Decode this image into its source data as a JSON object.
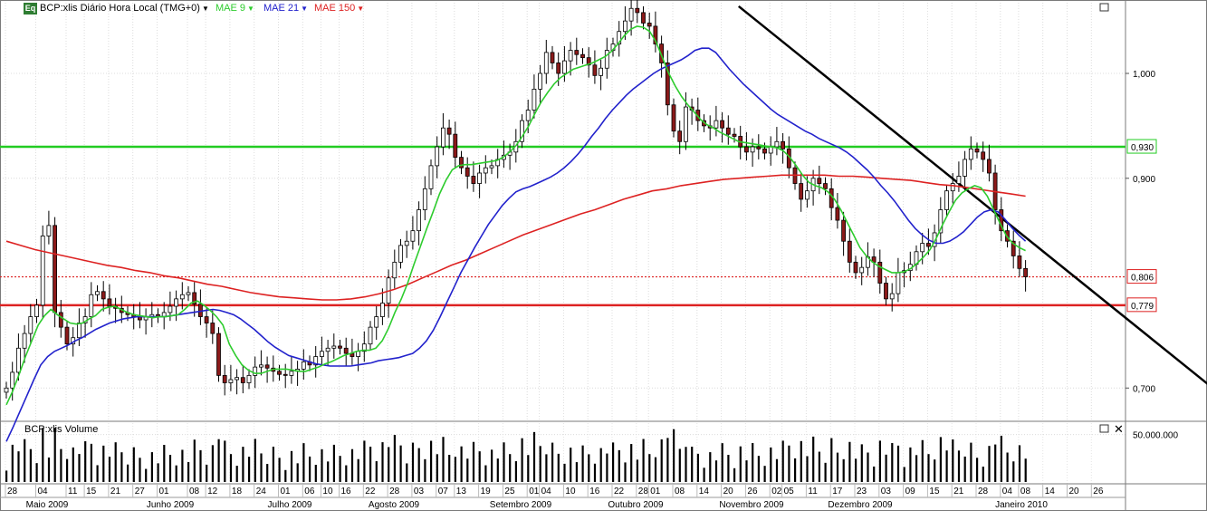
{
  "header": {
    "badge": "Eq",
    "symbol_title": "BCP:xlis Diário Hora Local (TMG+0)",
    "indicators": [
      {
        "label": "MAE 9",
        "color": "#2ecc2e"
      },
      {
        "label": "MAE 21",
        "color": "#2222cc"
      },
      {
        "label": "MAE 150",
        "color": "#dd2222"
      }
    ]
  },
  "volume_panel": {
    "title": "BCP:xlis Volume"
  },
  "colors": {
    "candle_up": "#ffffff",
    "candle_down": "#8b1a1a",
    "mae9": "#2ecc2e",
    "mae21": "#2222cc",
    "mae150": "#dd2222",
    "support_line": "#dd2222",
    "resistance_line": "#22cc22",
    "trend_line": "#000000"
  },
  "chart_data": {
    "type": "candlestick",
    "title": "BCP:xlis Diário Hora Local (TMG+0)",
    "y_axis": {
      "ticks": [
        {
          "value": 1.0,
          "label": "1,000"
        },
        {
          "value": 0.9,
          "label": "0,900"
        },
        {
          "value": 0.7,
          "label": "0,700"
        }
      ],
      "ylim": [
        0.67,
        1.07
      ]
    },
    "price_markers": [
      {
        "value": 0.93,
        "label": "0,930",
        "color": "#22cc22"
      },
      {
        "value": 0.806,
        "label": "0,806",
        "color": "#dd2222"
      },
      {
        "value": 0.779,
        "label": "0,779",
        "color": "#dd2222"
      }
    ],
    "horizontal_lines": [
      {
        "name": "resistance",
        "value": 0.93,
        "style": "solid"
      },
      {
        "name": "support",
        "value": 0.779,
        "style": "solid"
      },
      {
        "name": "last",
        "value": 0.806,
        "style": "dotted"
      }
    ],
    "trend_line": {
      "from": {
        "date": "2009-10-14",
        "value": 1.064
      },
      "to": {
        "date": "2010-02-01",
        "value": 0.698
      }
    },
    "day_ticks": [
      "28",
      "04",
      "11",
      "15",
      "21",
      "27",
      "01",
      "08",
      "12",
      "18",
      "24",
      "01",
      "06",
      "10",
      "16",
      "22",
      "28",
      "03",
      "07",
      "13",
      "19",
      "25",
      "01",
      "04",
      "10",
      "16",
      "22",
      "28",
      "01",
      "08",
      "14",
      "20",
      "26",
      "02",
      "05",
      "11",
      "17",
      "23",
      "03",
      "09",
      "15",
      "21",
      "28",
      "04",
      "08",
      "14",
      "20",
      "26"
    ],
    "month_labels": [
      "Maio 2009",
      "Junho 2009",
      "Julho 2009",
      "Agosto 2009",
      "Setembro 2009",
      "Outubro 2009",
      "Novembro 2009",
      "Dezembro 2009",
      "Janeiro 2010"
    ],
    "volume_axis": {
      "ticks": [
        {
          "value": 50000000,
          "label": "50.000.000"
        }
      ],
      "ylim": [
        0,
        62000000
      ]
    },
    "close_series": {
      "name": "BCP:xlis",
      "values": [
        0.7,
        0.715,
        0.738,
        0.752,
        0.768,
        0.779,
        0.845,
        0.855,
        0.772,
        0.758,
        0.742,
        0.748,
        0.762,
        0.768,
        0.789,
        0.792,
        0.785,
        0.778,
        0.776,
        0.772,
        0.77,
        0.768,
        0.765,
        0.768,
        0.77,
        0.768,
        0.772,
        0.778,
        0.785,
        0.789,
        0.791,
        0.78,
        0.768,
        0.762,
        0.752,
        0.712,
        0.705,
        0.708,
        0.71,
        0.705,
        0.712,
        0.72,
        0.722,
        0.719,
        0.716,
        0.713,
        0.712,
        0.716,
        0.718,
        0.725,
        0.722,
        0.73,
        0.735,
        0.738,
        0.74,
        0.738,
        0.733,
        0.73,
        0.735,
        0.742,
        0.758,
        0.768,
        0.781,
        0.805,
        0.82,
        0.836,
        0.84,
        0.85,
        0.87,
        0.89,
        0.912,
        0.93,
        0.948,
        0.942,
        0.92,
        0.91,
        0.902,
        0.895,
        0.905,
        0.91,
        0.912,
        0.918,
        0.922,
        0.925,
        0.935,
        0.955,
        0.965,
        0.985,
        1.0,
        1.02,
        1.01,
        1.0,
        1.012,
        1.022,
        1.018,
        1.015,
        1.008,
        0.998,
        1.005,
        1.022,
        1.028,
        1.04,
        1.05,
        1.062,
        1.058,
        1.048,
        1.045,
        1.028,
        1.01,
        0.97,
        0.945,
        0.935,
        0.968,
        0.965,
        0.955,
        0.95,
        0.948,
        0.955,
        0.948,
        0.942,
        0.94,
        0.93,
        0.925,
        0.93,
        0.928,
        0.924,
        0.93,
        0.935,
        0.928,
        0.91,
        0.895,
        0.88,
        0.888,
        0.9,
        0.895,
        0.89,
        0.872,
        0.86,
        0.84,
        0.82,
        0.81,
        0.815,
        0.825,
        0.82,
        0.8,
        0.785,
        0.79,
        0.81,
        0.812,
        0.818,
        0.83,
        0.838,
        0.835,
        0.848,
        0.87,
        0.888,
        0.895,
        0.902,
        0.918,
        0.928,
        0.925,
        0.918,
        0.905,
        0.87,
        0.85,
        0.84,
        0.826,
        0.814,
        0.806
      ]
    },
    "mae9_series": {
      "name": "MAE 9",
      "values": [
        0.684,
        0.697,
        0.713,
        0.73,
        0.745,
        0.76,
        0.769,
        0.775,
        0.77,
        0.766,
        0.762,
        0.761,
        0.762,
        0.766,
        0.769,
        0.775,
        0.777,
        0.778,
        0.775,
        0.772,
        0.77,
        0.769,
        0.768,
        0.767,
        0.768,
        0.768,
        0.769,
        0.77,
        0.775,
        0.781,
        0.783,
        0.779,
        0.774,
        0.768,
        0.76,
        0.742,
        0.731,
        0.722,
        0.717,
        0.714,
        0.714,
        0.716,
        0.718,
        0.718,
        0.718,
        0.717,
        0.716,
        0.716,
        0.718,
        0.72,
        0.723,
        0.725,
        0.728,
        0.731,
        0.733,
        0.735,
        0.736,
        0.736,
        0.738,
        0.745,
        0.757,
        0.772,
        0.785,
        0.8,
        0.818,
        0.835,
        0.852,
        0.868,
        0.885,
        0.898,
        0.908,
        0.912,
        0.913,
        0.913,
        0.914,
        0.915,
        0.916,
        0.917,
        0.92,
        0.925,
        0.931,
        0.94,
        0.95,
        0.962,
        0.973,
        0.982,
        0.99,
        0.996,
        1.0,
        1.004,
        1.006,
        1.008,
        1.01,
        1.013,
        1.016,
        1.021,
        1.028,
        1.036,
        1.042,
        1.045,
        1.044,
        1.04,
        1.03,
        1.015,
        1.0,
        0.988,
        0.978,
        0.97,
        0.963,
        0.956,
        0.951,
        0.948,
        0.944,
        0.941,
        0.938,
        0.935,
        0.934,
        0.933,
        0.932,
        0.931,
        0.93,
        0.929,
        0.926,
        0.92,
        0.912,
        0.903,
        0.896,
        0.893,
        0.891,
        0.887,
        0.88,
        0.87,
        0.858,
        0.846,
        0.834,
        0.826,
        0.82,
        0.816,
        0.813,
        0.81,
        0.81,
        0.811,
        0.814,
        0.819,
        0.825,
        0.832,
        0.843,
        0.856,
        0.868,
        0.879,
        0.886,
        0.89,
        0.893,
        0.891,
        0.883,
        0.87,
        0.857,
        0.845,
        0.838,
        0.834,
        0.831
      ]
    },
    "mae21_series": {
      "name": "MAE 21",
      "values": [
        0.649,
        0.663,
        0.678,
        0.693,
        0.708,
        0.722,
        0.73,
        0.735,
        0.738,
        0.741,
        0.745,
        0.748,
        0.752,
        0.756,
        0.759,
        0.762,
        0.764,
        0.766,
        0.767,
        0.768,
        0.768,
        0.768,
        0.768,
        0.768,
        0.769,
        0.77,
        0.771,
        0.772,
        0.773,
        0.774,
        0.775,
        0.774,
        0.772,
        0.77,
        0.766,
        0.761,
        0.756,
        0.75,
        0.744,
        0.739,
        0.735,
        0.731,
        0.729,
        0.727,
        0.725,
        0.723,
        0.722,
        0.721,
        0.721,
        0.721,
        0.721,
        0.722,
        0.723,
        0.724,
        0.726,
        0.727,
        0.728,
        0.729,
        0.731,
        0.733,
        0.738,
        0.745,
        0.755,
        0.768,
        0.782,
        0.796,
        0.81,
        0.822,
        0.834,
        0.845,
        0.856,
        0.865,
        0.874,
        0.881,
        0.887,
        0.89,
        0.892,
        0.895,
        0.898,
        0.901,
        0.905,
        0.91,
        0.916,
        0.923,
        0.931,
        0.94,
        0.948,
        0.957,
        0.965,
        0.972,
        0.979,
        0.985,
        0.99,
        0.995,
        1.0,
        1.004,
        1.007,
        1.01,
        1.013,
        1.017,
        1.022,
        1.024,
        1.024,
        1.02,
        1.012,
        1.004,
        0.997,
        0.99,
        0.984,
        0.978,
        0.972,
        0.966,
        0.961,
        0.957,
        0.953,
        0.949,
        0.945,
        0.942,
        0.938,
        0.935,
        0.932,
        0.929,
        0.925,
        0.92,
        0.914,
        0.908,
        0.901,
        0.893,
        0.886,
        0.878,
        0.869,
        0.86,
        0.852,
        0.846,
        0.841,
        0.838,
        0.838,
        0.84,
        0.844,
        0.849,
        0.856,
        0.863,
        0.868,
        0.87,
        0.868,
        0.861,
        0.853,
        0.846,
        0.84
      ]
    },
    "mae150_series": {
      "name": "MAE 150",
      "values": [
        0.84,
        0.836,
        0.832,
        0.829,
        0.826,
        0.823,
        0.82,
        0.817,
        0.815,
        0.812,
        0.81,
        0.807,
        0.805,
        0.802,
        0.799,
        0.797,
        0.794,
        0.791,
        0.789,
        0.787,
        0.786,
        0.785,
        0.784,
        0.784,
        0.785,
        0.787,
        0.79,
        0.794,
        0.799,
        0.805,
        0.811,
        0.817,
        0.822,
        0.828,
        0.834,
        0.84,
        0.846,
        0.851,
        0.856,
        0.861,
        0.866,
        0.87,
        0.875,
        0.88,
        0.884,
        0.888,
        0.89,
        0.893,
        0.895,
        0.897,
        0.899,
        0.9,
        0.901,
        0.902,
        0.903,
        0.903,
        0.903,
        0.903,
        0.902,
        0.902,
        0.901,
        0.9,
        0.899,
        0.898,
        0.896,
        0.894,
        0.893,
        0.891,
        0.889,
        0.887,
        0.885,
        0.883
      ]
    }
  }
}
